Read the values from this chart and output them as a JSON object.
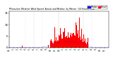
{
  "bar_color": "#ff0000",
  "median_color": "#0000ff",
  "background_color": "#ffffff",
  "n_minutes": 1440,
  "ylim": [
    0,
    16
  ],
  "legend_actual": "Actual",
  "legend_median": "Median",
  "ytick_fontsize": 2.8,
  "xtick_fontsize": 2.2,
  "title_fontsize": 2.2,
  "title_text": "Milwaukee Weather Wind Speed  Actual and Median  by Minute  (24 Hours) (Old)"
}
